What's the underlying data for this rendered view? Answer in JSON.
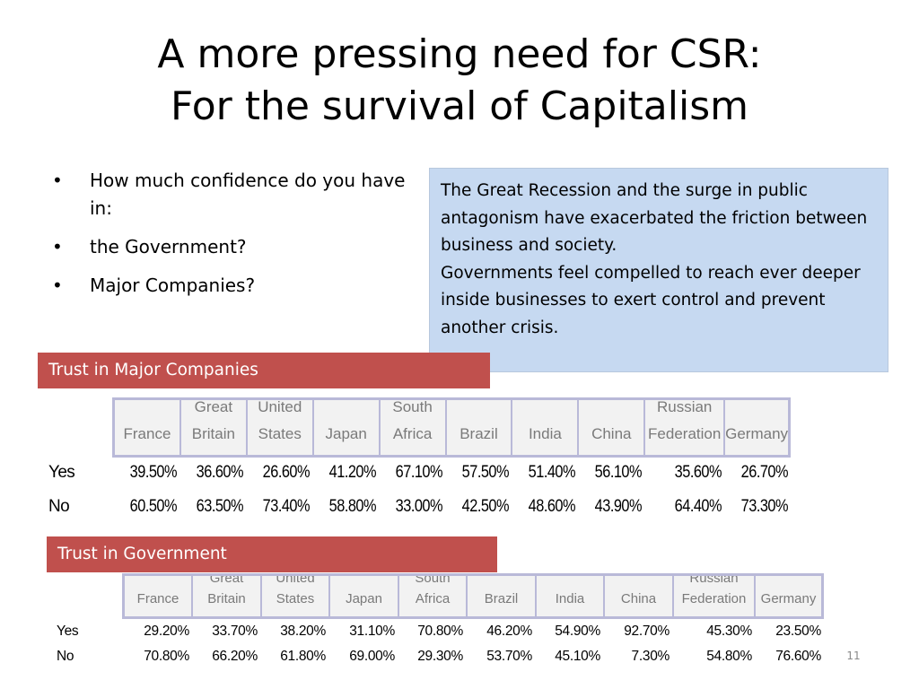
{
  "slide": {
    "title_line1": "A more pressing need for CSR:",
    "title_line2": "For the survival of Capitalism",
    "page_number": "11"
  },
  "bullets": [
    "How much confidence do you have in:",
    "the Government?",
    "Major Companies?"
  ],
  "callout": {
    "line1": "The Great Recession and the surge in public antagonism have exacerbated the friction between business and society.",
    "line2": "Governments feel compelled to reach ever deeper inside businesses to exert control and prevent another crisis."
  },
  "table_companies": {
    "banner": "Trust in Major Companies",
    "columns": [
      [
        "France"
      ],
      [
        "Great",
        "Britain"
      ],
      [
        "United",
        "States"
      ],
      [
        "Japan"
      ],
      [
        "South",
        "Africa"
      ],
      [
        "Brazil"
      ],
      [
        "India"
      ],
      [
        "China"
      ],
      [
        "Russian",
        "Federation"
      ],
      [
        "Germany"
      ]
    ],
    "rows": [
      {
        "label": "Yes",
        "values": [
          "39.50%",
          "36.60%",
          "26.60%",
          "41.20%",
          "67.10%",
          "57.50%",
          "51.40%",
          "56.10%",
          "35.60%",
          "26.70%"
        ]
      },
      {
        "label": "No",
        "values": [
          "60.50%",
          "63.50%",
          "73.40%",
          "58.80%",
          "33.00%",
          "42.50%",
          "48.60%",
          "43.90%",
          "64.40%",
          "73.30%"
        ]
      }
    ]
  },
  "table_government": {
    "banner": "Trust in Government",
    "columns": [
      [
        "France"
      ],
      [
        "Great",
        "Britain"
      ],
      [
        "United",
        "States"
      ],
      [
        "Japan"
      ],
      [
        "South",
        "Africa"
      ],
      [
        "Brazil"
      ],
      [
        "India"
      ],
      [
        "China"
      ],
      [
        "Russian",
        "Federation"
      ],
      [
        "Germany"
      ]
    ],
    "rows": [
      {
        "label": "Yes",
        "values": [
          "29.20%",
          "33.70%",
          "38.20%",
          "31.10%",
          "70.80%",
          "46.20%",
          "54.90%",
          "92.70%",
          "45.30%",
          "23.50%"
        ]
      },
      {
        "label": "No",
        "values": [
          "70.80%",
          "66.20%",
          "61.80%",
          "69.00%",
          "29.30%",
          "53.70%",
          "45.10%",
          "7.30%",
          "54.80%",
          "76.60%"
        ]
      }
    ]
  }
}
